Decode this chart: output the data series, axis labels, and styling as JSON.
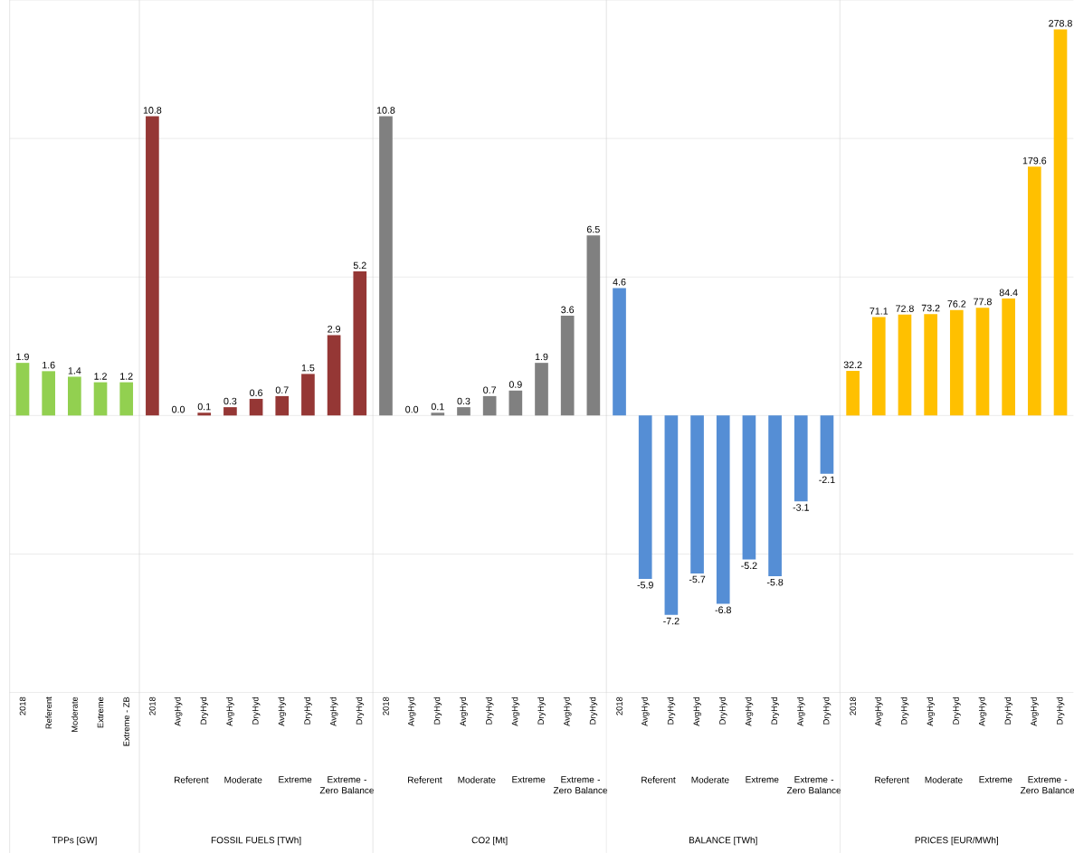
{
  "chart_data": [
    {
      "type": "bar",
      "xlabel": "TPPs [GW]",
      "categories": [
        "2018",
        "Referent",
        "Moderate",
        "Extreme",
        "Extreme - ZB"
      ],
      "values": [
        1.9,
        1.6,
        1.4,
        1.2,
        1.2
      ],
      "color": "#92d050",
      "data_labels": true,
      "ylim": [
        -10,
        15
      ],
      "yticks": [
        {
          "value": -10,
          "label": null
        },
        {
          "value": -5,
          "label": null
        },
        {
          "value": 0,
          "label": null
        },
        {
          "value": 5,
          "label": null
        },
        {
          "value": 10,
          "label": null
        },
        {
          "value": 15,
          "label": null
        }
      ],
      "grid": "y",
      "tick_labels": "x"
    },
    {
      "type": "bar",
      "xlabel": "FOSSIL FUELS [TWh]",
      "categories": [
        "2018",
        "AvgHyd",
        "DryHyd",
        "AvgHyd",
        "DryHyd",
        "AvgHyd",
        "DryHyd",
        "AvgHyd",
        "DryHyd"
      ],
      "annotations": [
        "Referent",
        "Moderate",
        "Extreme",
        "Extreme - Zero Balance"
      ],
      "values": [
        10.8,
        0.0,
        0.1,
        0.3,
        0.6,
        0.7,
        1.5,
        2.9,
        5.2
      ],
      "value_labels": [
        "10.8",
        "0.0",
        "0.1",
        "0.3",
        "0.6",
        "0.7",
        "1.5",
        "2.9",
        "5.2"
      ],
      "color": "#953735",
      "ylim": [
        -10,
        15
      ],
      "yticks": [
        {
          "value": -10,
          "label": null
        },
        {
          "value": -5,
          "label": null
        },
        {
          "value": 0,
          "label": null
        },
        {
          "value": 5,
          "label": null
        },
        {
          "value": 10,
          "label": null
        },
        {
          "value": 15,
          "label": null
        }
      ],
      "grid": "y",
      "tick_labels": "x"
    },
    {
      "type": "bar",
      "xlabel": "CO2 [Mt]",
      "categories": [
        "2018",
        "AvgHyd",
        "DryHyd",
        "AvgHyd",
        "DryHyd",
        "AvgHyd",
        "DryHyd",
        "AvgHyd",
        "DryHyd"
      ],
      "annotations": [
        "Referent",
        "Moderate",
        "Extreme",
        "Extreme - Zero Balance"
      ],
      "values": [
        10.8,
        0.0,
        0.1,
        0.3,
        0.7,
        0.9,
        1.9,
        3.6,
        6.5
      ],
      "value_labels": [
        "10.8",
        "0.0",
        "0.1",
        "0.3",
        "0.7",
        "0.9",
        "1.9",
        "3.6",
        "6.5"
      ],
      "color": "#808080",
      "ylim": [
        -10,
        15
      ],
      "yticks": [
        {
          "value": -10,
          "label": null
        },
        {
          "value": -5,
          "label": null
        },
        {
          "value": 0,
          "label": null
        },
        {
          "value": 5,
          "label": null
        },
        {
          "value": 10,
          "label": null
        },
        {
          "value": 15,
          "label": null
        }
      ],
      "grid": "y",
      "tick_labels": "x"
    },
    {
      "type": "bar",
      "xlabel": "BALANCE [TWh]",
      "categories": [
        "2018",
        "AvgHyd",
        "DryHyd",
        "AvgHyd",
        "DryHyd",
        "AvgHyd",
        "DryHyd",
        "AvgHyd",
        "DryHyd"
      ],
      "annotations": [
        "Referent",
        "Moderate",
        "Extreme",
        "Extreme - Zero Balance"
      ],
      "values": [
        4.6,
        -5.9,
        -7.2,
        -5.7,
        -6.8,
        -5.2,
        -5.8,
        -3.1,
        -2.1
      ],
      "color": "#558ed5",
      "data_labels": true,
      "ylim": [
        -10,
        15
      ],
      "yticks": [
        {
          "value": -10,
          "label": null
        },
        {
          "value": -5,
          "label": null
        },
        {
          "value": 0,
          "label": null
        },
        {
          "value": 5,
          "label": null
        },
        {
          "value": 10,
          "label": null
        },
        {
          "value": 15,
          "label": null
        }
      ],
      "grid": "y",
      "tick_labels": "x"
    },
    {
      "type": "bar",
      "xlabel": "PRICES [EUR/MWh]",
      "categories": [
        "2018",
        "AvgHyd",
        "DryHyd",
        "AvgHyd",
        "DryHyd",
        "AvgHyd",
        "DryHyd",
        "AvgHyd",
        "DryHyd"
      ],
      "annotations": [
        "Referent",
        "Moderate",
        "Extreme",
        "Extreme - Zero Balance"
      ],
      "values": [
        32.2,
        71.1,
        72.8,
        73.2,
        76.2,
        77.8,
        84.4,
        179.6,
        278.8
      ],
      "color": "#ffc000",
      "data_labels": true,
      "ylim": [
        -200,
        300
      ],
      "yticks": [
        {
          "value": -200,
          "label": null
        },
        {
          "value": -100,
          "label": null
        },
        {
          "value": 0,
          "label": null
        },
        {
          "value": 100,
          "label": null
        },
        {
          "value": 200,
          "label": null
        },
        {
          "value": 300,
          "label": null
        }
      ],
      "grid": "y",
      "tick_labels": "x"
    }
  ]
}
